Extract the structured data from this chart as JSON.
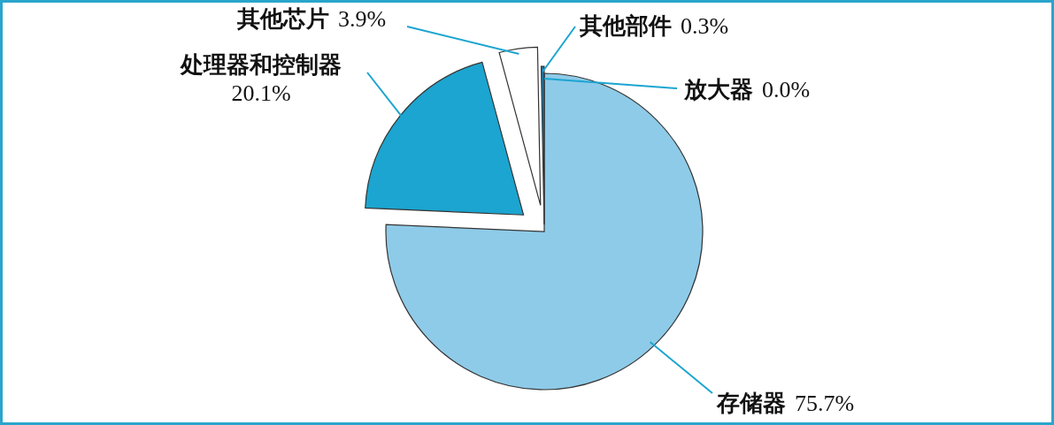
{
  "chart_data": {
    "type": "pie",
    "categories": [
      "存储器",
      "处理器和控制器",
      "其他芯片",
      "其他部件",
      "放大器"
    ],
    "values": [
      75.7,
      20.1,
      3.9,
      0.3,
      0.0
    ],
    "colors": [
      "#8ecbe8",
      "#1ba5d0",
      "#ffffff",
      "#1f78a8",
      "#2b8cc0"
    ],
    "data_labels": true,
    "value_labels": [
      "75.7%",
      "20.1%",
      "3.9%",
      "0.3%",
      "0.0%"
    ]
  }
}
